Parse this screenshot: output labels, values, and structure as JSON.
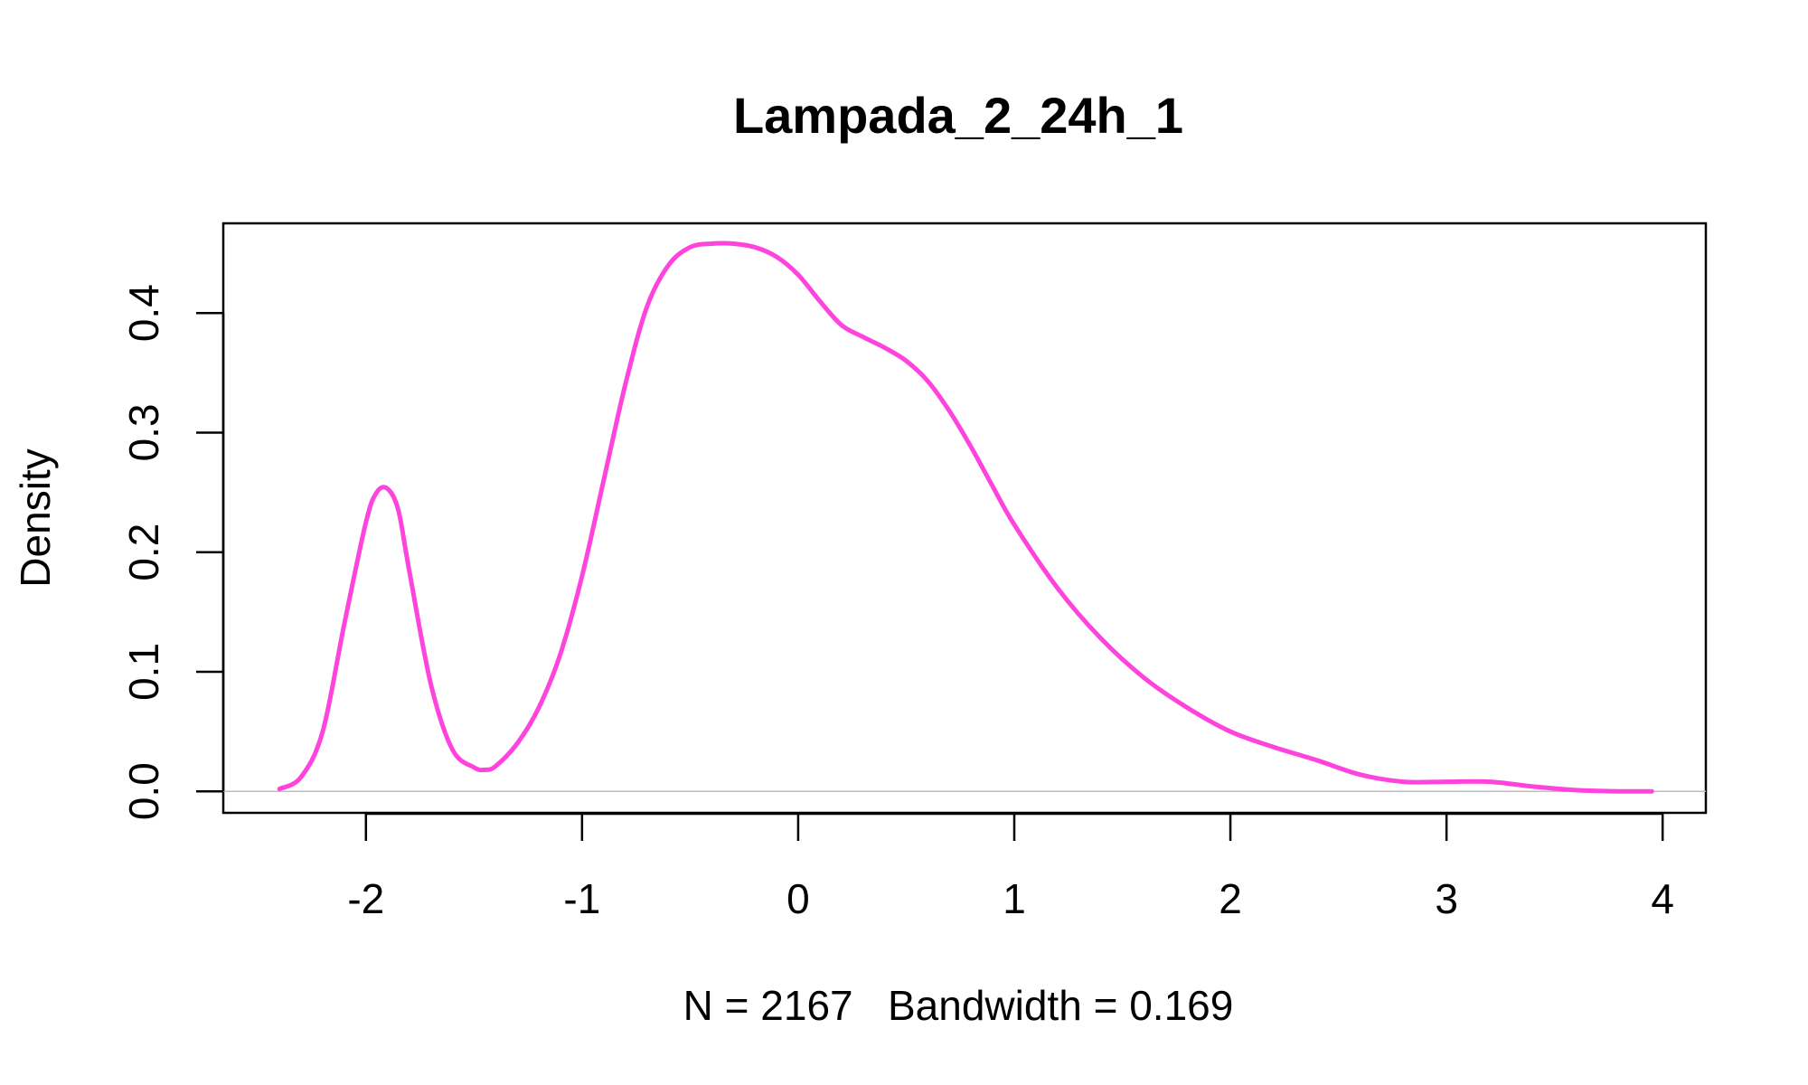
{
  "chart_data": {
    "type": "line",
    "title": "Lampada_2_24h_1",
    "xlabel": "N = 2167   Bandwidth = 0.169",
    "ylabel": "Density",
    "xlim": [
      -2.66,
      4.2
    ],
    "ylim": [
      -0.018,
      0.475
    ],
    "grid": false,
    "legend": "none",
    "x_ticks": [
      -2,
      -1,
      0,
      1,
      2,
      3,
      4
    ],
    "x_tick_labels": [
      "-2",
      "-1",
      "0",
      "1",
      "2",
      "3",
      "4"
    ],
    "y_ticks": [
      0.0,
      0.1,
      0.2,
      0.3,
      0.4
    ],
    "y_tick_labels": [
      "0.0",
      "0.1",
      "0.2",
      "0.3",
      "0.4"
    ],
    "baseline": {
      "y": 0,
      "color": "#bebebe"
    },
    "series": [
      {
        "color": "#ff44dd",
        "x": [
          -2.4,
          -2.3,
          -2.2,
          -2.1,
          -2.0,
          -1.95,
          -1.9,
          -1.85,
          -1.8,
          -1.7,
          -1.6,
          -1.5,
          -1.45,
          -1.4,
          -1.3,
          -1.2,
          -1.1,
          -1.0,
          -0.9,
          -0.8,
          -0.7,
          -0.6,
          -0.5,
          -0.4,
          -0.3,
          -0.2,
          -0.1,
          0.0,
          0.1,
          0.2,
          0.3,
          0.4,
          0.5,
          0.6,
          0.7,
          0.8,
          0.9,
          1.0,
          1.2,
          1.4,
          1.6,
          1.8,
          2.0,
          2.2,
          2.4,
          2.6,
          2.8,
          3.0,
          3.2,
          3.4,
          3.6,
          3.8,
          3.95
        ],
        "values": [
          0.002,
          0.012,
          0.05,
          0.14,
          0.225,
          0.25,
          0.253,
          0.235,
          0.185,
          0.09,
          0.035,
          0.02,
          0.018,
          0.021,
          0.04,
          0.07,
          0.115,
          0.18,
          0.26,
          0.34,
          0.405,
          0.44,
          0.455,
          0.458,
          0.458,
          0.455,
          0.447,
          0.432,
          0.41,
          0.39,
          0.38,
          0.371,
          0.36,
          0.343,
          0.318,
          0.288,
          0.255,
          0.223,
          0.17,
          0.128,
          0.095,
          0.07,
          0.05,
          0.037,
          0.026,
          0.014,
          0.008,
          0.008,
          0.008,
          0.004,
          0.001,
          0.0,
          0.0
        ]
      }
    ]
  }
}
